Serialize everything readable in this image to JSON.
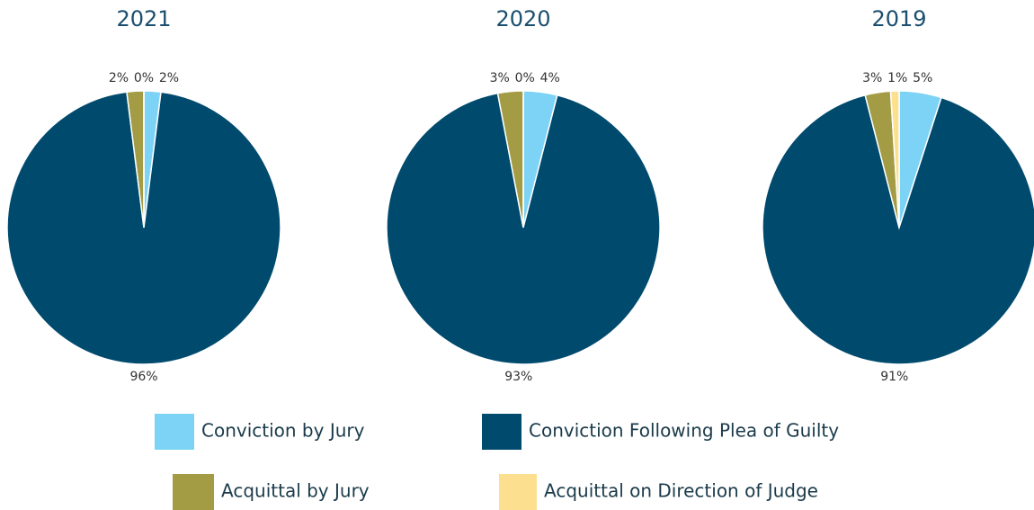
{
  "chart_data": [
    {
      "type": "pie",
      "title": "2021",
      "values": [
        2,
        96,
        2,
        0
      ],
      "value_labels": [
        "2%",
        "96%",
        "2%",
        "0%"
      ]
    },
    {
      "type": "pie",
      "title": "2020",
      "values": [
        4,
        93,
        3,
        0
      ],
      "value_labels": [
        "4%",
        "93%",
        "3%",
        "0%"
      ]
    },
    {
      "type": "pie",
      "title": "2019",
      "values": [
        5,
        91,
        3,
        1
      ],
      "value_labels": [
        "5%",
        "91%",
        "3%",
        "1%"
      ]
    }
  ],
  "legend": {
    "categories": [
      "Conviction by Jury",
      "Conviction Following Plea of Guilty",
      "Acquittal by Jury",
      "Acquittal on Direction of Judge"
    ],
    "colors": [
      "#7dd3f5",
      "#004a6e",
      "#a39c45",
      "#fde08f"
    ]
  }
}
